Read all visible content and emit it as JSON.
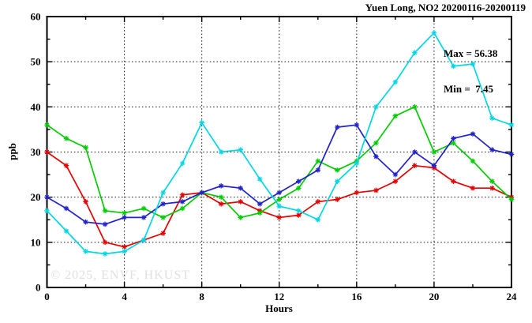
{
  "header": {
    "title": "Yuen Long, NO2 20200116-20200119"
  },
  "annotation": {
    "max_label": "Max = 56.38",
    "min_label": "Min =  7.45"
  },
  "watermark": "© 2025, ENVF, HKUST",
  "chart_data": {
    "type": "line",
    "title": "Yuen Long, NO2 20200116-20200119",
    "xlabel": "Hours",
    "ylabel": "ppb",
    "xlim": [
      0,
      24
    ],
    "ylim": [
      0,
      60
    ],
    "x_major_ticks": [
      0,
      4,
      8,
      12,
      16,
      20,
      24
    ],
    "x_minor_ticks": [
      2,
      6,
      10,
      14,
      18,
      22
    ],
    "y_major_ticks": [
      0,
      10,
      20,
      30,
      40,
      50,
      60
    ],
    "y_minor_ticks": [
      5,
      15,
      25,
      35,
      45,
      55
    ],
    "grid_x": [
      4,
      8,
      12,
      16,
      20
    ],
    "grid_y": [
      10,
      20,
      30,
      40,
      50
    ],
    "legend_position": "none",
    "grid": "dotted",
    "max_value": 56.38,
    "min_value": 7.45,
    "x": [
      0,
      1,
      2,
      3,
      4,
      5,
      6,
      7,
      8,
      9,
      10,
      11,
      12,
      13,
      14,
      15,
      16,
      17,
      18,
      19,
      20,
      21,
      22,
      23,
      24
    ],
    "series": [
      {
        "name": "series-red",
        "color": "#e60000",
        "values": [
          30,
          27,
          19,
          10,
          9,
          10.5,
          12,
          20.5,
          21,
          18.5,
          19,
          17,
          15.5,
          16,
          19,
          19.5,
          21,
          21.5,
          23.5,
          27,
          26.5,
          23.5,
          22,
          22,
          20
        ]
      },
      {
        "name": "series-green",
        "color": "#00cc00",
        "values": [
          36,
          33,
          31,
          17,
          16.5,
          17.5,
          15.5,
          17.5,
          21,
          20,
          15.5,
          16.5,
          19.5,
          22,
          28,
          26,
          28,
          32,
          38,
          40,
          30,
          32,
          28,
          23.5,
          19.5
        ]
      },
      {
        "name": "series-blue",
        "color": "#2222cc",
        "values": [
          20,
          17.5,
          14.5,
          14,
          15.5,
          15.5,
          18.5,
          19,
          21,
          22.5,
          22,
          18.5,
          21,
          23.5,
          26,
          35.5,
          36,
          29,
          25,
          30,
          27,
          33,
          34,
          30.5,
          29.5
        ]
      },
      {
        "name": "series-cyan",
        "color": "#00d7e6",
        "values": [
          17,
          12.5,
          8,
          7.45,
          8,
          10.5,
          21,
          27.5,
          36.5,
          30,
          30.5,
          24,
          18,
          17,
          15,
          23.5,
          27.5,
          40,
          45.5,
          52,
          56.38,
          49,
          49.5,
          37.5,
          36
        ]
      }
    ]
  }
}
